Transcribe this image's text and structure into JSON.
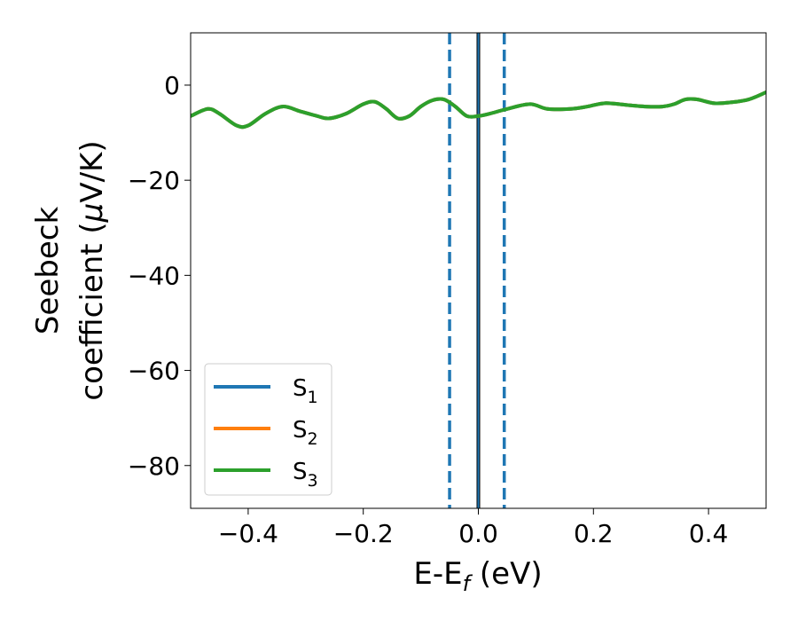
{
  "chart_data": {
    "type": "line",
    "xlabel": {
      "main": "E-E",
      "sub": "f",
      "unit": " (eV)"
    },
    "ylabel": {
      "line1": "Seebeck",
      "line2_prefix": "coefficient  (",
      "mu": "μ",
      "line2_suffix": "V/K)"
    },
    "xlim": [
      -0.5,
      0.5
    ],
    "ylim": [
      -89,
      11
    ],
    "xticks": [
      -0.4,
      -0.2,
      0.0,
      0.2,
      0.4
    ],
    "xtick_labels": [
      "−0.4",
      "−0.2",
      "0.0",
      "0.2",
      "0.4"
    ],
    "yticks": [
      0,
      -20,
      -40,
      -60,
      -80
    ],
    "ytick_labels": [
      "0",
      "−20",
      "−40",
      "−60",
      "−80"
    ],
    "legend_placement": "lower-left",
    "grid": false,
    "x": [
      -0.5,
      -0.47,
      -0.45,
      -0.42,
      -0.4,
      -0.37,
      -0.34,
      -0.31,
      -0.28,
      -0.26,
      -0.23,
      -0.2,
      -0.18,
      -0.16,
      -0.14,
      -0.12,
      -0.1,
      -0.08,
      -0.06,
      -0.04,
      -0.02,
      0.0,
      0.02,
      0.05,
      0.09,
      0.12,
      0.16,
      0.19,
      0.22,
      0.26,
      0.29,
      0.32,
      0.34,
      0.36,
      0.38,
      0.41,
      0.44,
      0.47,
      0.5
    ],
    "series": [
      {
        "name": "S",
        "sub": "1",
        "color": "#1f77b4",
        "y": [
          -6.5,
          -5.0,
          -6.0,
          -8.5,
          -8.5,
          -6.0,
          -4.5,
          -5.5,
          -6.5,
          -7.0,
          -6.0,
          -4.0,
          -3.5,
          -5.0,
          -7.0,
          -6.5,
          -4.5,
          -3.2,
          -3.0,
          -4.5,
          -6.5,
          -6.5,
          -6.0,
          -5.0,
          -4.0,
          -5.0,
          -5.0,
          -4.5,
          -3.8,
          -4.2,
          -4.5,
          -4.5,
          -4.0,
          -3.0,
          -3.0,
          -3.8,
          -3.6,
          -3.0,
          -1.5
        ]
      },
      {
        "name": "S",
        "sub": "2",
        "color": "#ff7f0e",
        "y": [
          -6.5,
          -5.0,
          -6.0,
          -8.5,
          -8.5,
          -6.0,
          -4.5,
          -5.5,
          -6.5,
          -7.0,
          -6.0,
          -4.0,
          -3.5,
          -5.0,
          -7.0,
          -6.5,
          -4.5,
          -3.2,
          -3.0,
          -4.5,
          -6.5,
          -6.5,
          -6.0,
          -5.0,
          -4.0,
          -5.0,
          -5.0,
          -4.5,
          -3.8,
          -4.2,
          -4.5,
          -4.5,
          -4.0,
          -3.0,
          -3.0,
          -3.8,
          -3.6,
          -3.0,
          -1.5
        ]
      },
      {
        "name": "S",
        "sub": "3",
        "color": "#2ca02c",
        "y": [
          -6.5,
          -5.0,
          -6.0,
          -8.5,
          -8.5,
          -6.0,
          -4.5,
          -5.5,
          -6.5,
          -7.0,
          -6.0,
          -4.0,
          -3.5,
          -5.0,
          -7.0,
          -6.5,
          -4.5,
          -3.2,
          -3.0,
          -4.5,
          -6.5,
          -6.5,
          -6.0,
          -5.0,
          -4.0,
          -5.0,
          -5.0,
          -4.5,
          -3.8,
          -4.2,
          -4.5,
          -4.5,
          -4.0,
          -3.0,
          -3.0,
          -3.8,
          -3.6,
          -3.0,
          -1.5
        ]
      }
    ],
    "vlines": [
      {
        "x": 0.0,
        "color": "#000000",
        "style": "solid"
      },
      {
        "x": 0.0,
        "color": "#1f77b4",
        "style": "solid"
      },
      {
        "x": -0.05,
        "color": "#1f77b4",
        "style": "dashed"
      },
      {
        "x": 0.045,
        "color": "#1f77b4",
        "style": "dashed"
      }
    ]
  }
}
